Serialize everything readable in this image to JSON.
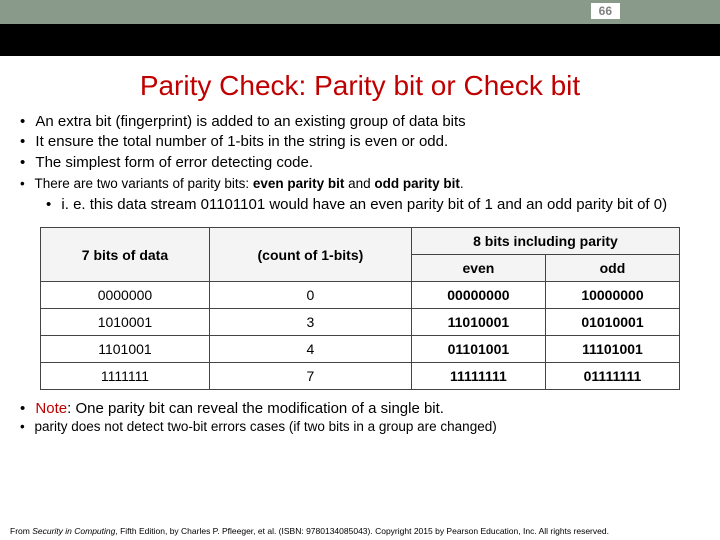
{
  "page_number": "66",
  "title": "Parity Check:  Parity bit or Check bit",
  "bullets_main": [
    "An extra bit (fingerprint) is added to an existing group of data bits",
    "It ensure the total number of 1-bits in the string is even or odd.",
    "The simplest form of error detecting code."
  ],
  "variants_prefix": "There are two variants of parity bits: ",
  "variants_even": "even parity bit",
  "variants_and": " and ",
  "variants_odd": "odd parity bit",
  "variants_suffix": ".",
  "sub_bullet": "i. e. this data stream 01101101 would have an even parity bit of 1 and an odd parity bit of 0)",
  "table": {
    "headers": {
      "col1": "7 bits of data",
      "col2": "(count of 1-bits)",
      "col3_top": "8 bits including parity",
      "col3_even": "even",
      "col3_odd": "odd"
    },
    "rows": [
      {
        "data7": "0000000",
        "count": "0",
        "even": "00000000",
        "odd": "10000000"
      },
      {
        "data7": "1010001",
        "count": "3",
        "even": "11010001",
        "odd": "01010001"
      },
      {
        "data7": "1101001",
        "count": "4",
        "even": "01101001",
        "odd": "11101001"
      },
      {
        "data7": "1111111",
        "count": "7",
        "even": "11111111",
        "odd": "01111111"
      }
    ]
  },
  "note_label": "Note",
  "note_text": ": One parity bit can reveal the modification of a single bit.",
  "note_sub": "parity does not detect two-bit errors cases (if two bits in a group are changed)",
  "footer_prefix": "From ",
  "footer_title": "Security in Computing",
  "footer_rest": ", Fifth Edition, by Charles P. Pfleeger, et al. (ISBN: 9780134085043). Copyright 2015 by Pearson Education, Inc. All rights reserved.",
  "colors": {
    "title": "#c00000",
    "header_bar": "#8a9a8a",
    "page_num_text": "#808080"
  }
}
